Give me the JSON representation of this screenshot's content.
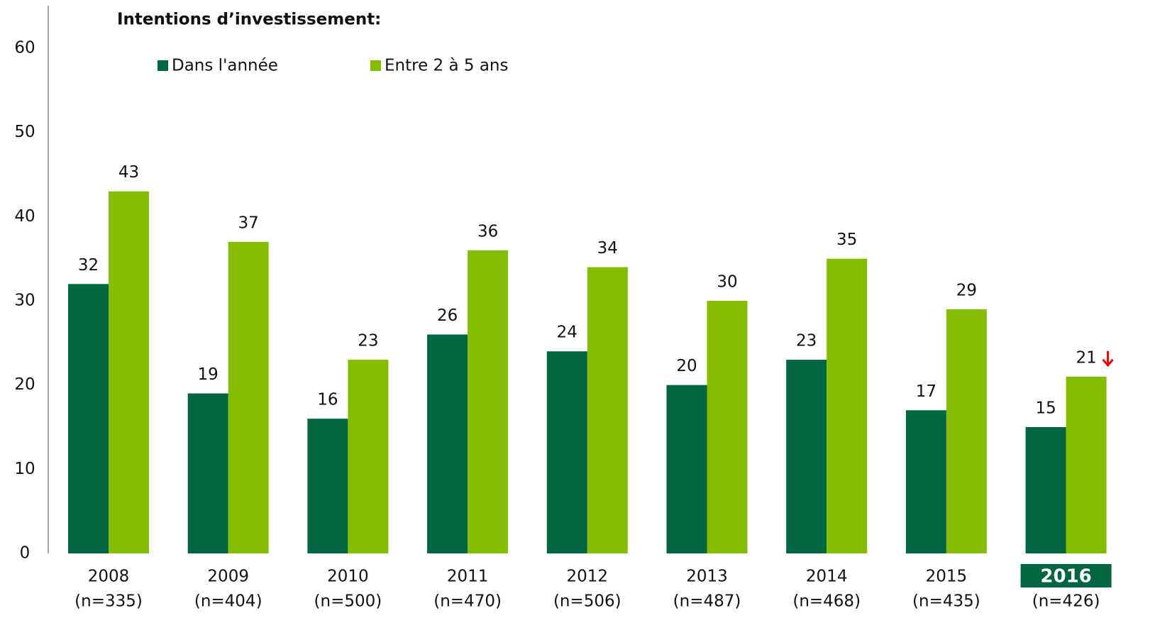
{
  "chart_data": {
    "type": "bar",
    "title": "Intentions d’investissement:",
    "categories": [
      "2008",
      "2009",
      "2010",
      "2011",
      "2012",
      "2013",
      "2014",
      "2015",
      "2016"
    ],
    "sample_sizes": [
      "(n=335)",
      "(n=404)",
      "(n=500)",
      "(n=470)",
      "(n=506)",
      "(n=487)",
      "(n=468)",
      "(n=435)",
      "(n=426)"
    ],
    "highlight_category": 8,
    "series": [
      {
        "name": "Dans l'année",
        "color": "#006640",
        "values": [
          32,
          19,
          16,
          26,
          24,
          20,
          23,
          17,
          15
        ]
      },
      {
        "name": "Entre 2 à 5 ans",
        "color": "#84bd00",
        "values": [
          43,
          37,
          23,
          36,
          34,
          30,
          35,
          29,
          21
        ]
      }
    ],
    "ylim": [
      0,
      60
    ],
    "yticks": [
      0,
      10,
      20,
      30,
      40,
      50,
      60
    ],
    "grid": false
  }
}
